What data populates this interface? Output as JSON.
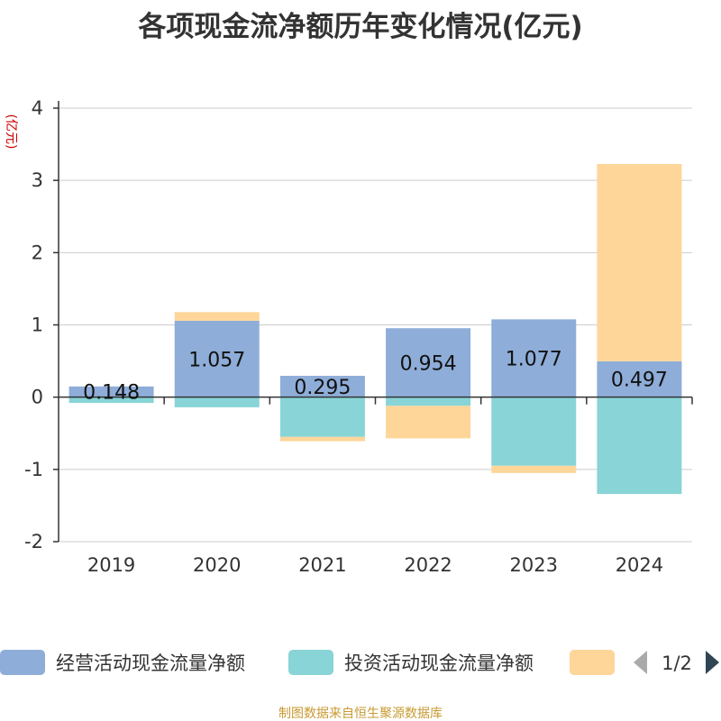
{
  "chart_data": {
    "type": "bar",
    "stacked": true,
    "title": "各项现金流净额历年变化情况(亿元)",
    "ylabel": "(亿元)",
    "xlabel": "",
    "categories": [
      "2019",
      "2020",
      "2021",
      "2022",
      "2023",
      "2024"
    ],
    "ylim": [
      -2,
      4
    ],
    "yticks": [
      "-2",
      "-1",
      "0",
      "1",
      "2",
      "3",
      "4"
    ],
    "grid": true,
    "legend_position": "bottom",
    "series": [
      {
        "name": "经营活动现金流量净额",
        "color": "#8eadd8",
        "values": [
          0.148,
          1.057,
          0.295,
          0.954,
          1.077,
          0.497
        ],
        "labels": [
          "0.148",
          "1.057",
          "0.295",
          "0.954",
          "1.077",
          "0.497"
        ]
      },
      {
        "name": "投资活动现金流量净额",
        "color": "#88d4d6",
        "values": [
          -0.08,
          -0.14,
          -0.55,
          -0.12,
          -0.95,
          -1.34
        ]
      },
      {
        "name": "",
        "color": "#fed699",
        "values": [
          0.0,
          0.12,
          -0.06,
          -0.45,
          -0.1,
          2.73
        ]
      }
    ]
  },
  "legend": {
    "page": "1/2",
    "prev_icon": "triangle-left-icon",
    "next_icon": "triangle-right-icon"
  },
  "source": "制图数据来自恒生聚源数据库"
}
